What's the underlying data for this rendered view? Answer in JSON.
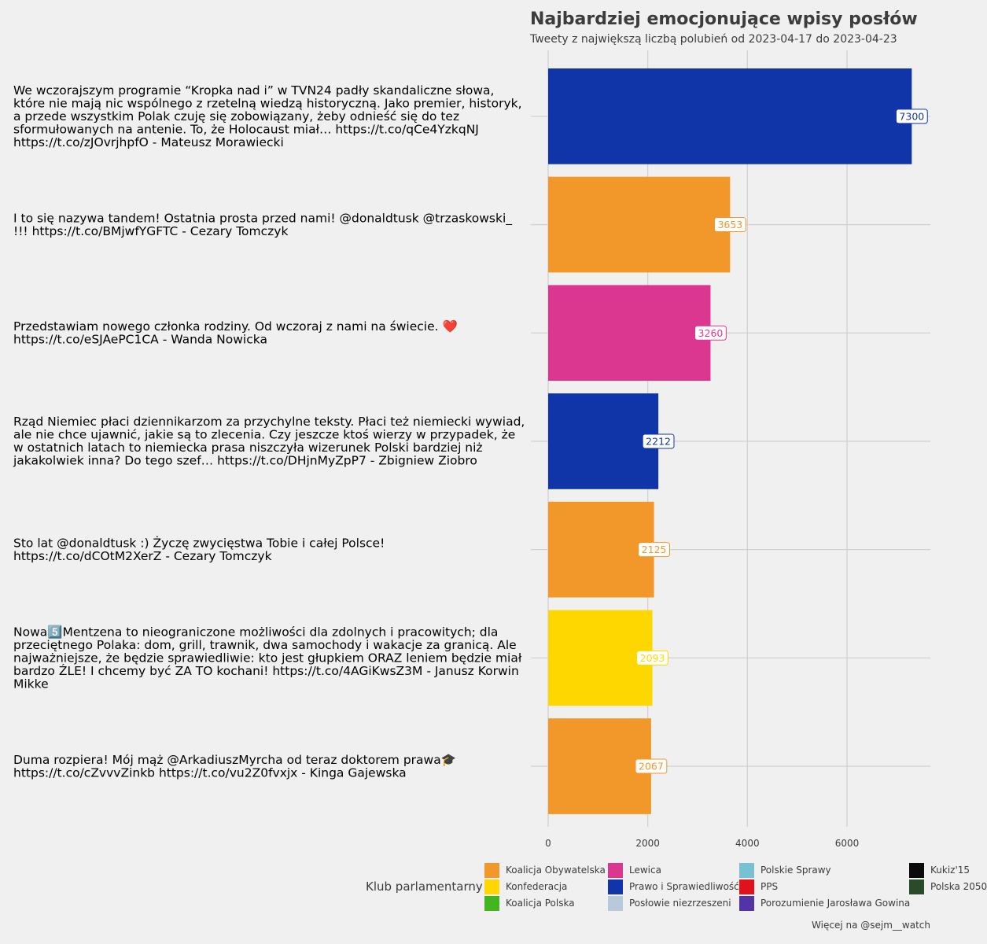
{
  "chart_data": {
    "type": "bar",
    "orientation": "horizontal",
    "title": "Najbardziej emocjonujące wpisy posłów",
    "subtitle": "Tweety z największą liczbą polubień od 2023-04-17 do 2023-04-23",
    "caption": "Więcej na @sejm__watch",
    "xlim": [
      0,
      7600
    ],
    "xticks": [
      0,
      2000,
      4000,
      6000
    ],
    "grid": true,
    "legend_title": "Klub parlamentarny",
    "legend_position": "bottom",
    "categories": [
      "We wczorajszym programie “Kropka nad i” w TVN24 padły skandaliczne słowa, które nie mają nic wspólnego z rzetelną wiedzą historyczną. Jako premier, historyk, a przede wszystkim Polak czuję się zobowiązany, żeby odnieść się do tez sformułowanych na antenie. To, że Holocaust miał… https://t.co/qCe4YzkqNJ https://t.co/zJOvrjhpfO - Mateusz Morawiecki",
      "I to się nazywa tandem! Ostatnia prosta przed nami! @donaldtusk @trzaskowski_ !!! https://t.co/BMjwfYGFTC - Cezary Tomczyk",
      "Przedstawiam nowego członka rodziny. Od wczoraj z nami na świecie. ❤️ https://t.co/eSJAePC1CA - Wanda Nowicka",
      "Rząd Niemiec płaci dziennikarzom za przychylne teksty. Płaci też niemiecki wywiad, ale nie chce ujawnić, jakie są to zlecenia. Czy jeszcze ktoś wierzy w przypadek, że w ostatnich latach to niemiecka prasa niszczyła wizerunek Polski bardziej niż jakakolwiek inna? Do tego szef… https://t.co/DHjnMyZpP7 - Zbigniew Ziobro",
      "Sto lat @donaldtusk :) Życzę zwycięstwa Tobie i całej Polsce! https://t.co/dCOtM2XerZ - Cezary Tomczyk",
      "Nowa5️⃣Mentzena to nieograniczone możliwości dla zdolnych i pracowitych; dla przeciętnego Polaka: dom, grill, trawnik, dwa samochody i wakacje za granicą. Ale najważniejsze, że będzie sprawiedliwie: kto jest głupkiem ORAZ leniem będzie miał bardzo ŹLE! I chcemy być ZA TO kochani! https://t.co/4AGiKwsZ3M - Janusz Korwin Mikke",
      "Duma rozpiera! Mój mąż @ArkadiuszMyrcha od teraz doktorem prawa🎓 https://t.co/cZvvvZinkb https://t.co/vu2Z0fvxjx - Kinga Gajewska"
    ],
    "values": [
      7300,
      3653,
      3260,
      2212,
      2125,
      2093,
      2067
    ],
    "bar_clubs": [
      "Prawo i Sprawiedliwość",
      "Koalicja Obywatelska",
      "Lewica",
      "Prawo i Sprawiedliwość",
      "Koalicja Obywatelska",
      "Konfederacja",
      "Koalicja Obywatelska"
    ],
    "legend": [
      {
        "name": "Koalicja Obywatelska",
        "color": "#f29729"
      },
      {
        "name": "Konfederacja",
        "color": "#ffd700"
      },
      {
        "name": "Koalicja Polska",
        "color": "#43b51f"
      },
      {
        "name": "Lewica",
        "color": "#db3790"
      },
      {
        "name": "Prawo i Sprawiedliwość",
        "color": "#1035a8"
      },
      {
        "name": "Posłowie niezrzeszeni",
        "color": "#b9c8db"
      },
      {
        "name": "Polskie Sprawy",
        "color": "#76c1d2"
      },
      {
        "name": "PPS",
        "color": "#e0121b"
      },
      {
        "name": "Porozumienie Jarosława Gowina",
        "color": "#5135a6"
      },
      {
        "name": "Kukiz'15",
        "color": "#0a0a0a"
      },
      {
        "name": "Polska 2050",
        "color": "#2a4a2a"
      }
    ]
  }
}
